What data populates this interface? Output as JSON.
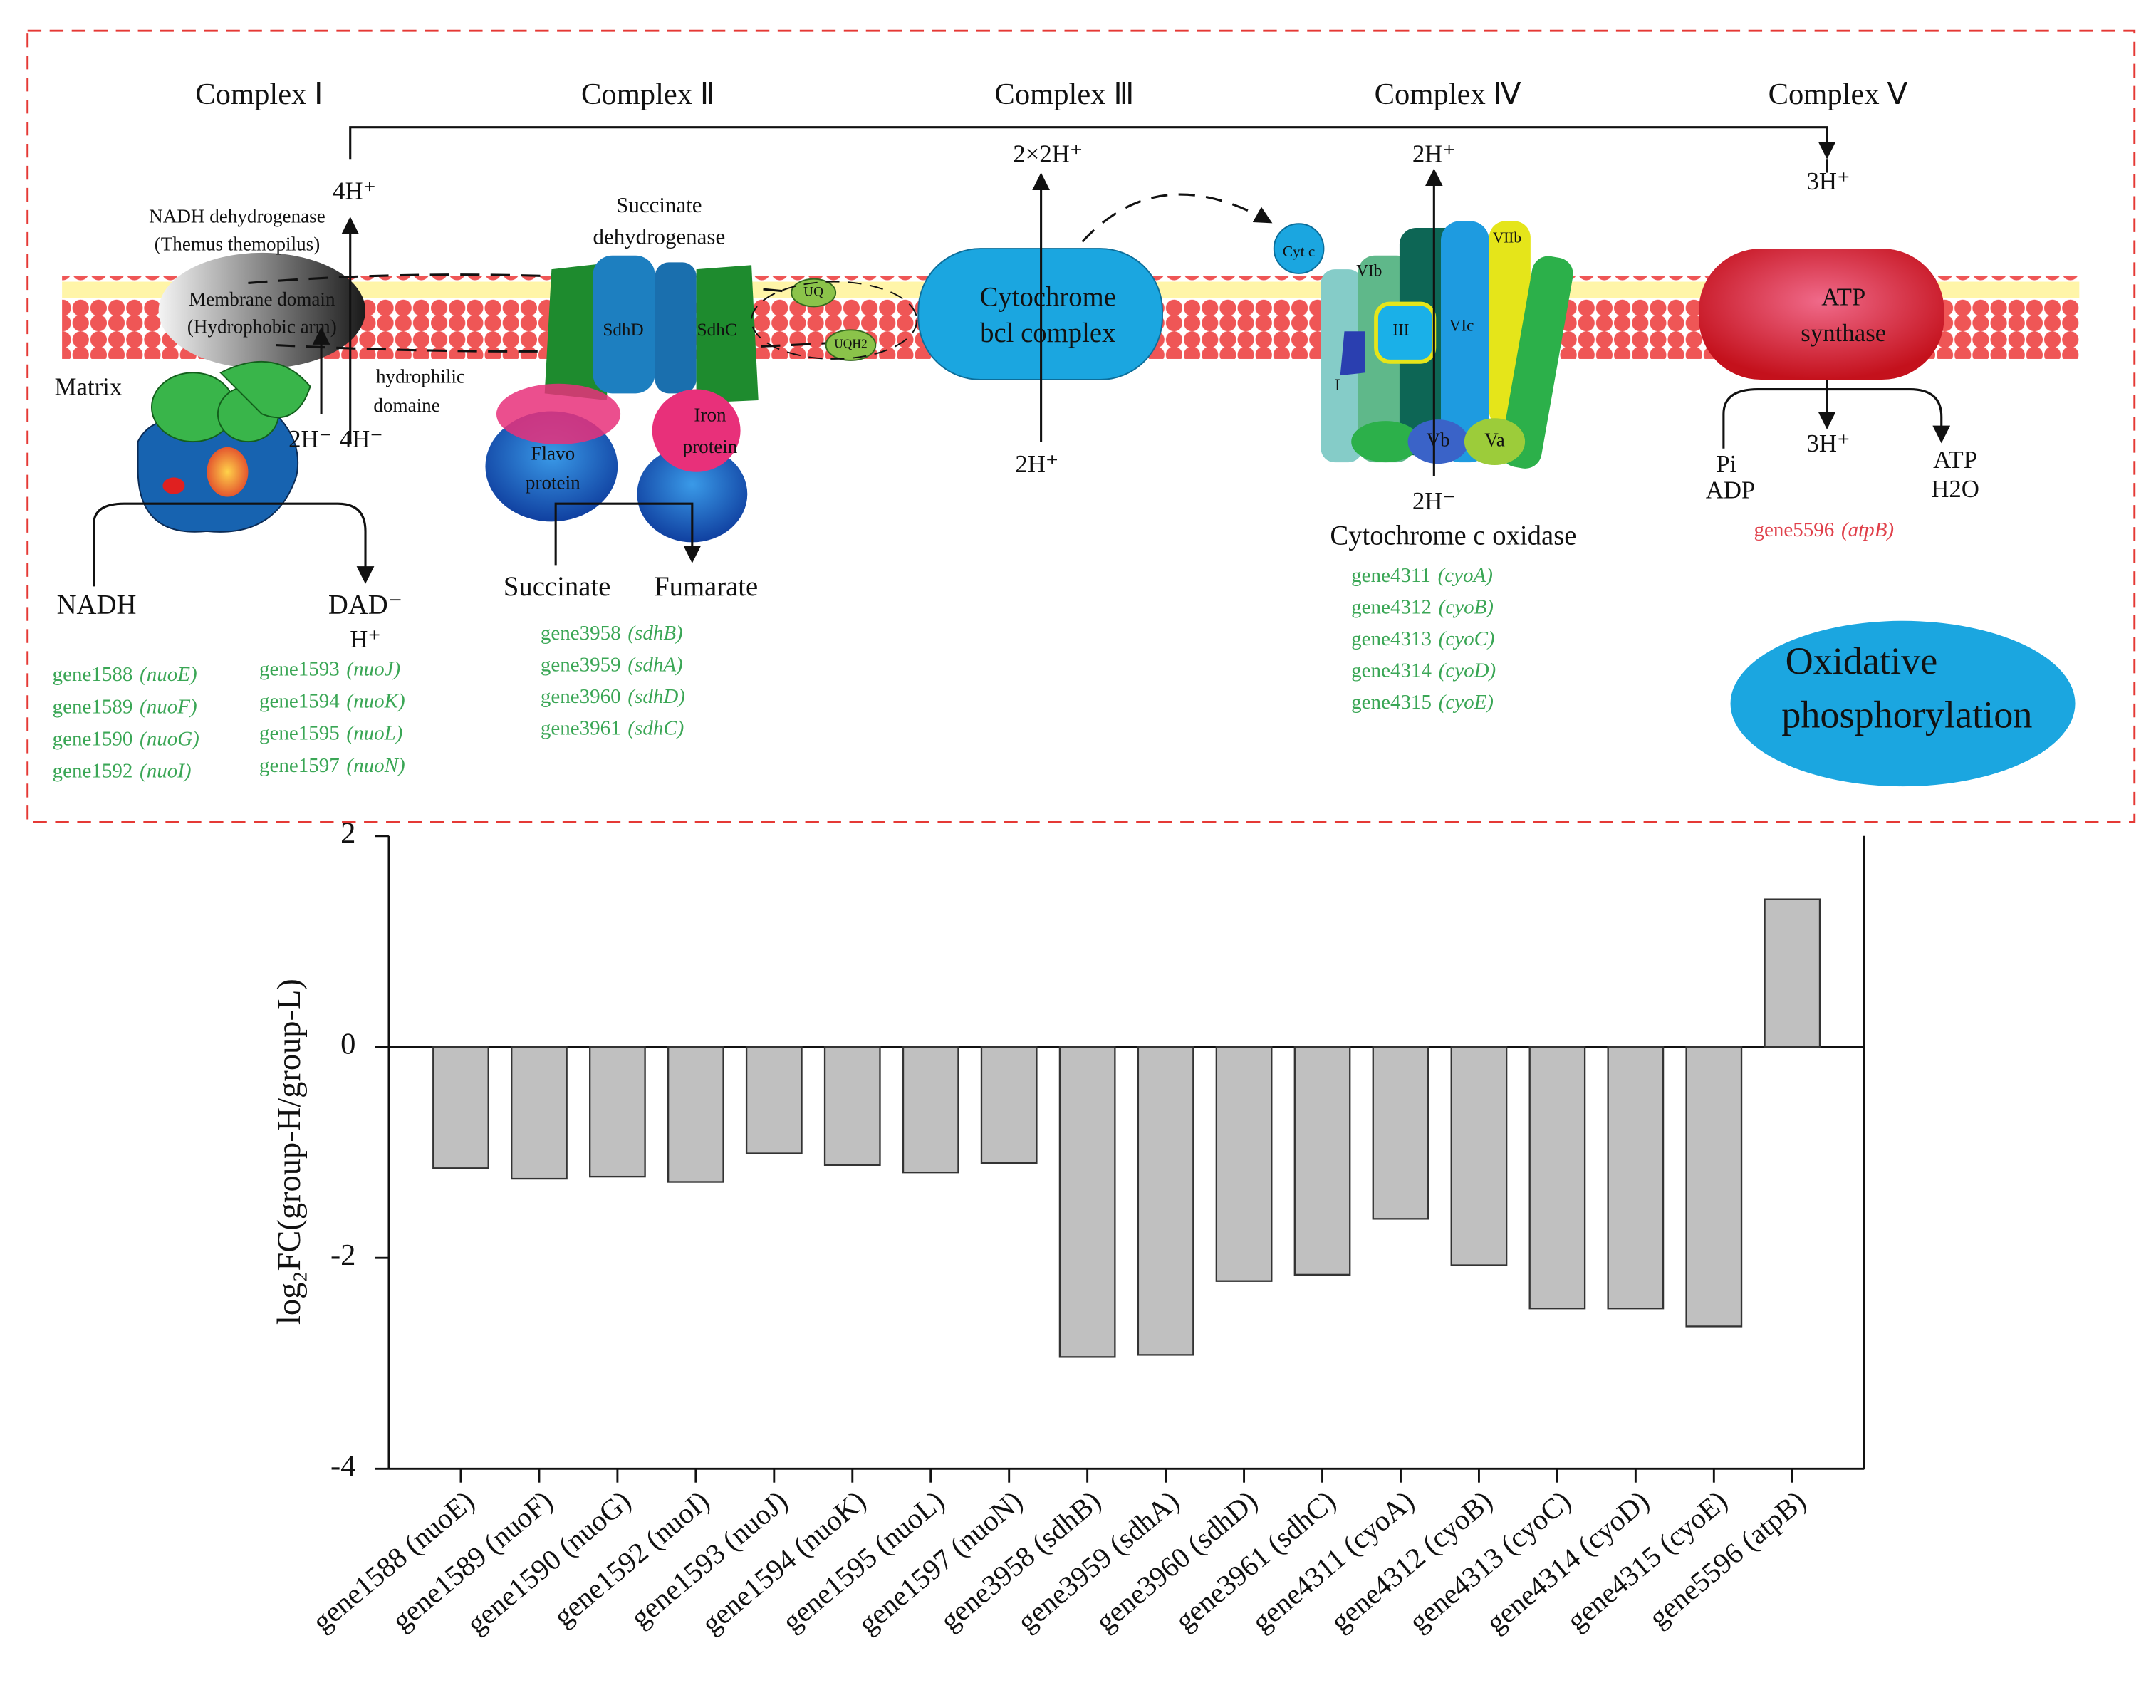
{
  "diagram": {
    "complexes": [
      "Complex Ⅰ",
      "Complex Ⅱ",
      "Complex Ⅲ",
      "Complex Ⅳ",
      "Complex Ⅴ"
    ],
    "complex1": {
      "protons_out": "4H⁺",
      "title": "NADH dehydrogenase",
      "organism": "(Themus themopilus)",
      "membrane": "Membrane domain",
      "membrane_sub": "(Hydrophobic arm)",
      "hydrophilic": "hydrophilic",
      "domain": "domaine",
      "matrix": "Matrix",
      "protons_in_a": "2H⁻",
      "protons_in_b": "4H⁻",
      "substrate": "NADH",
      "product": "DAD⁻",
      "product_sub": "H⁺",
      "genes": [
        {
          "gene": "gene1588",
          "symbol": "(nuoE)"
        },
        {
          "gene": "gene1589",
          "symbol": "(nuoF)"
        },
        {
          "gene": "gene1590",
          "symbol": "(nuoG)"
        },
        {
          "gene": "gene1592",
          "symbol": "(nuoI)"
        },
        {
          "gene": "gene1593",
          "symbol": "(nuoJ)"
        },
        {
          "gene": "gene1594",
          "symbol": "(nuoK)"
        },
        {
          "gene": "gene1595",
          "symbol": "(nuoL)"
        },
        {
          "gene": "gene1597",
          "symbol": "(nuoN)"
        }
      ]
    },
    "complex2": {
      "title": "Succinate",
      "title2": "dehydrogenase",
      "sdhd": "SdhD",
      "sdhc": "SdhC",
      "uq": "UQ",
      "uqh2": "UQH2",
      "flavo": "Flavo",
      "flavo2": "protein",
      "iron": "Iron",
      "iron2": "protein",
      "substrate": "Succinate",
      "product": "Fumarate",
      "genes": [
        {
          "gene": "gene3958",
          "symbol": "(sdhB)"
        },
        {
          "gene": "gene3959",
          "symbol": "(sdhA)"
        },
        {
          "gene": "gene3960",
          "symbol": "(sdhD)"
        },
        {
          "gene": "gene3961",
          "symbol": "(sdhC)"
        }
      ]
    },
    "complex3": {
      "protons_out": "2×2H⁺",
      "name": "Cytochrome",
      "name2": "bcl complex",
      "protons_in": "2H⁺"
    },
    "complex4": {
      "protons_out": "2H⁺",
      "cytc": "Cyt c",
      "vib": "VIb",
      "viib": "VIIb",
      "iii": "III",
      "vic": "VIc",
      "i": "I",
      "vb": "Vb",
      "va": "Va",
      "protons_in": "2H⁻",
      "name": "Cytochrome c oxidase",
      "genes": [
        {
          "gene": "gene4311",
          "symbol": "(cyoA)"
        },
        {
          "gene": "gene4312",
          "symbol": "(cyoB)"
        },
        {
          "gene": "gene4313",
          "symbol": "(cyoC)"
        },
        {
          "gene": "gene4314",
          "symbol": "(cyoD)"
        },
        {
          "gene": "gene4315",
          "symbol": "(cyoE)"
        }
      ]
    },
    "complex5": {
      "protons_out": "3H⁺",
      "name": "ATP",
      "name2": "synthase",
      "protons_in": "3H⁺",
      "pi": "Pi",
      "adp": "ADP",
      "atp": "ATP",
      "h2o": "H2O",
      "genes": [
        {
          "gene": "gene5596",
          "symbol": "(atpB)"
        }
      ]
    },
    "pathway": "Oxidative",
    "pathway2": "phosphorylation"
  },
  "chart_data": {
    "type": "bar",
    "y_label": "log₂FC(group-H/group-L)",
    "categories": [
      "gene1588 (nuoE)",
      "gene1589 (nuoF)",
      "gene1590 (nuoG)",
      "gene1592 (nuoI)",
      "gene1593 (nuoJ)",
      "gene1594 (nuoK)",
      "gene1595 (nuoL)",
      "gene1597 (nuoN)",
      "gene3958 (sdhB)",
      "gene3959 (sdhA)",
      "gene3960 (sdhD)",
      "gene3961 (sdhC)",
      "gene4311 (cyoA)",
      "gene4312 (cyoB)",
      "gene4313 (cyoC)",
      "gene4314 (cyoD)",
      "gene4315 (cyoE)",
      "gene5596 (atpB)"
    ],
    "values": [
      -1.15,
      -1.25,
      -1.23,
      -1.28,
      -1.01,
      -1.12,
      -1.19,
      -1.1,
      -2.94,
      -2.92,
      -2.22,
      -2.16,
      -1.63,
      -2.07,
      -2.48,
      -2.48,
      -2.65,
      1.4
    ],
    "color": "#c0c0c0",
    "ylim": [
      -4,
      2
    ],
    "yticks": [
      -4,
      -2,
      0,
      2
    ]
  }
}
